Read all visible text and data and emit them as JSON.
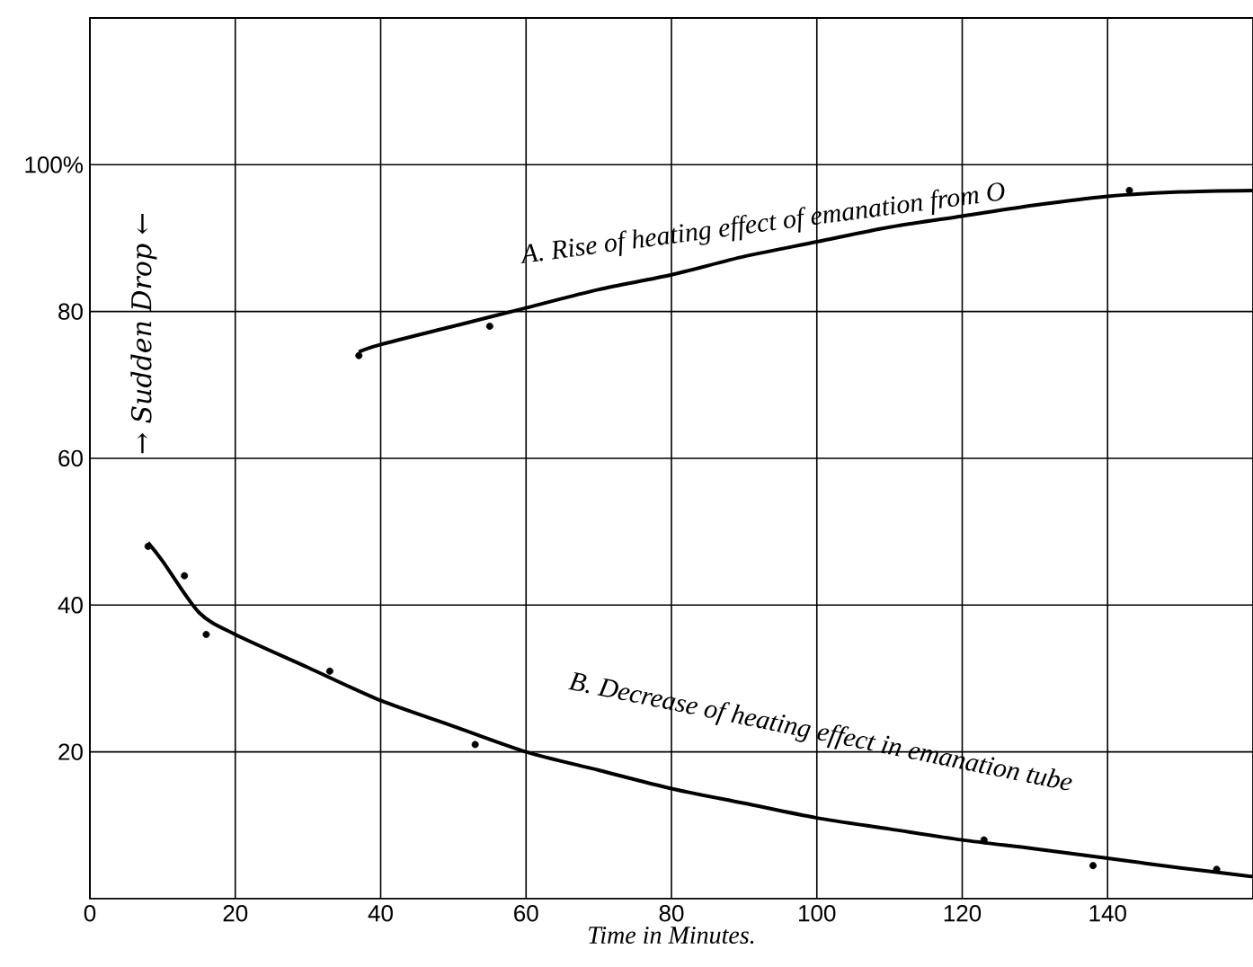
{
  "chart_data": {
    "type": "line",
    "xlabel": "Time in Minutes.",
    "xlim": [
      0,
      160
    ],
    "ylim": [
      0,
      120
    ],
    "xticks": [
      0,
      20,
      40,
      60,
      80,
      100,
      120,
      140
    ],
    "yticks": [
      20,
      40,
      60,
      80,
      {
        "value": 100,
        "label": "100%"
      }
    ],
    "grid": true,
    "series": [
      {
        "color": "#000000",
        "marker": "none",
        "x": [
          37,
          40,
          50,
          60,
          70,
          80,
          90,
          100,
          110,
          120,
          130,
          140,
          150,
          160
        ],
        "values": [
          74.5,
          75.5,
          78,
          80.5,
          83,
          85,
          87.5,
          89.5,
          91.5,
          93,
          94.5,
          95.7,
          96.3,
          96.5
        ]
      },
      {
        "type": "scatter",
        "color": "#000000",
        "marker": "circle",
        "x": [
          37,
          55,
          143
        ],
        "values": [
          74,
          78,
          96.5
        ]
      },
      {
        "color": "#000000",
        "marker": "none",
        "x": [
          8,
          10,
          15,
          20,
          30,
          40,
          50,
          60,
          70,
          80,
          90,
          100,
          110,
          120,
          130,
          140,
          150,
          160
        ],
        "values": [
          48.5,
          46,
          39,
          36,
          31.5,
          27,
          23.5,
          20,
          17.5,
          15,
          13,
          11,
          9.5,
          8,
          6.8,
          5.5,
          4.2,
          3
        ]
      },
      {
        "type": "scatter",
        "color": "#000000",
        "marker": "circle",
        "x": [
          8,
          13,
          16,
          33,
          53,
          123,
          138,
          155
        ],
        "values": [
          48,
          44,
          36,
          31,
          21,
          8,
          4.5,
          4
        ]
      }
    ],
    "annotations": [
      "A. Rise of heating effect of emanation from O",
      "B. Decrease of heating effect in emanation tube",
      "→ Sudden Drop ←"
    ]
  }
}
